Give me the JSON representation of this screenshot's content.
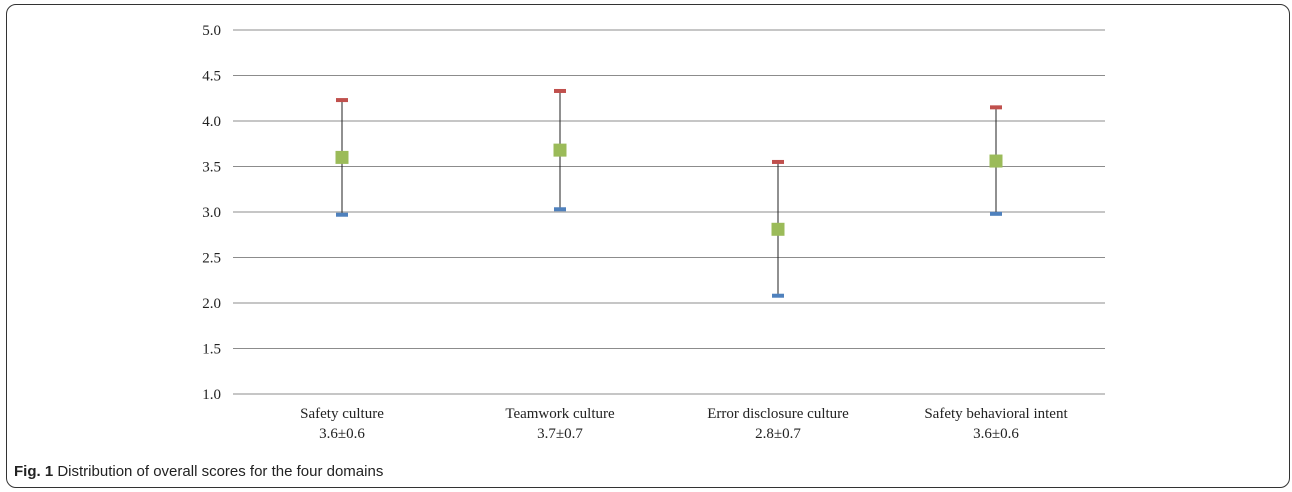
{
  "chart_data": {
    "type": "scatter",
    "title": "",
    "xlabel": "",
    "ylabel": "",
    "ylim": [
      1.0,
      5.0
    ],
    "ytick_step": 0.5,
    "grid": true,
    "categories": [
      {
        "name": "Safety culture",
        "subtitle": "3.6±0.6"
      },
      {
        "name": "Teamwork culture",
        "subtitle": "3.7±0.7"
      },
      {
        "name": "Error disclosure culture",
        "subtitle": "2.8±0.7"
      },
      {
        "name": "Safety behavioral intent",
        "subtitle": "3.6±0.6"
      }
    ],
    "series": [
      {
        "role": "upper",
        "color": "#c0504d",
        "values": [
          4.23,
          4.33,
          3.55,
          4.15
        ]
      },
      {
        "role": "mean",
        "color": "#9bbb59",
        "values": [
          3.6,
          3.68,
          2.81,
          3.56
        ]
      },
      {
        "role": "lower",
        "color": "#4f81bd",
        "values": [
          2.97,
          3.03,
          2.08,
          2.98
        ]
      }
    ]
  },
  "caption": {
    "label": "Fig. 1",
    "text": "Distribution of overall scores for the four domains"
  }
}
